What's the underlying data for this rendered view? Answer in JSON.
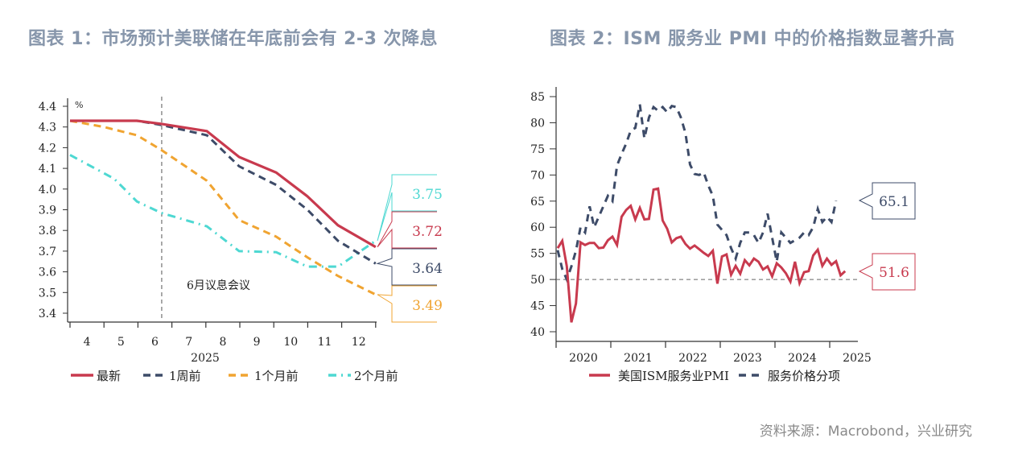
{
  "titles": {
    "left": "图表 1：市场预计美联储在年底前会有 2-3 次降息",
    "right": "图表 2：ISM 服务业 PMI 中的价格指数显著升高"
  },
  "source": "资料来源：Macrobond，兴业研究",
  "chart_data": [
    {
      "type": "line",
      "unit_label": "%",
      "xlabel": "2025",
      "x_tick_labels": [
        "4",
        "5",
        "6",
        "7",
        "8",
        "9",
        "10",
        "11",
        "12"
      ],
      "x_unit": "month of 2025",
      "ylim": [
        3.4,
        4.4
      ],
      "y_ticks": [
        3.4,
        3.5,
        3.6,
        3.7,
        3.8,
        3.9,
        4.0,
        4.1,
        4.2,
        4.3,
        4.4
      ],
      "grid": false,
      "legend_position": "bottom",
      "annotation": {
        "text": "6月议息会议",
        "x": 6.2
      },
      "series": [
        {
          "name": "最新",
          "color": "#c83a4e",
          "style": "solid",
          "x": [
            3.5,
            5.47,
            6.18,
            7.53,
            8.48,
            9.57,
            10.49,
            11.39,
            12.5
          ],
          "y": [
            4.33,
            4.33,
            4.315,
            4.28,
            4.155,
            4.08,
            3.965,
            3.825,
            3.72
          ],
          "end_label": "3.72"
        },
        {
          "name": "1周前",
          "color": "#3d4b68",
          "style": "dash",
          "x": [
            3.5,
            5.47,
            6.18,
            7.53,
            8.48,
            9.57,
            10.49,
            11.39,
            12.5
          ],
          "y": [
            4.33,
            4.33,
            4.31,
            4.26,
            4.11,
            4.02,
            3.9,
            3.75,
            3.64
          ],
          "end_label": "3.64"
        },
        {
          "name": "1个月前",
          "color": "#f0a431",
          "style": "dash",
          "x": [
            3.5,
            4.5,
            5.47,
            6.18,
            7.53,
            8.48,
            9.57,
            10.49,
            11.39,
            12.5
          ],
          "y": [
            4.33,
            4.3,
            4.26,
            4.19,
            4.04,
            3.85,
            3.77,
            3.67,
            3.58,
            3.49
          ],
          "end_label": "3.49"
        },
        {
          "name": "2个月前",
          "color": "#4ed8d2",
          "style": "dashdot",
          "x": [
            3.5,
            4.8,
            5.47,
            6.18,
            7.53,
            8.48,
            9.57,
            10.49,
            11.39,
            12.5
          ],
          "y": [
            4.165,
            4.05,
            3.94,
            3.885,
            3.82,
            3.7,
            3.695,
            3.625,
            3.625,
            3.75
          ],
          "end_label": "3.75"
        }
      ]
    },
    {
      "type": "line",
      "x_tick_labels": [
        "2020",
        "2021",
        "2022",
        "2023",
        "2024",
        "2025"
      ],
      "x_start": "2020-01",
      "x_frequency": "monthly",
      "ylim": [
        40,
        85
      ],
      "y_ticks": [
        40,
        45,
        50,
        55,
        60,
        65,
        70,
        75,
        80,
        85
      ],
      "reference_line": 50,
      "grid": false,
      "legend_position": "bottom",
      "series": [
        {
          "name": "美国ISM服务业PMI",
          "color": "#c83a4e",
          "style": "solid",
          "end_label": "51.6",
          "values": [
            56.0,
            57.4,
            52.5,
            41.8,
            45.4,
            57.1,
            56.6,
            57.0,
            57.0,
            56.0,
            56.1,
            57.5,
            58.2,
            56.6,
            62.0,
            63.3,
            64.1,
            61.5,
            63.7,
            61.5,
            61.6,
            67.2,
            67.4,
            61.3,
            59.7,
            57.1,
            57.9,
            58.2,
            56.8,
            55.9,
            56.5,
            55.8,
            55.1,
            54.5,
            55.5,
            49.2,
            54.4,
            54.8,
            50.9,
            52.6,
            51.1,
            53.7,
            52.7,
            54.0,
            53.4,
            51.9,
            52.5,
            50.6,
            53.1,
            52.3,
            51.2,
            49.6,
            53.4,
            49.3,
            51.4,
            51.6,
            54.6,
            55.7,
            52.6,
            54.0,
            52.8,
            53.5,
            50.8,
            51.6
          ]
        },
        {
          "name": "服务价格分项",
          "color": "#3d4b68",
          "style": "dash",
          "end_label": "65.1",
          "values": [
            55.6,
            52.0,
            50.0,
            52.5,
            55.5,
            60.0,
            59.0,
            64.0,
            60.0,
            62.0,
            64.0,
            66.0,
            65.0,
            71.8,
            74.0,
            76.0,
            78.5,
            79.0,
            83.5,
            77.0,
            81.0,
            83.0,
            82.3,
            83.0,
            82.0,
            83.2,
            83.0,
            81.0,
            78.0,
            72.0,
            70.2,
            70.0,
            70.5,
            68.0,
            66.0,
            60.5,
            59.5,
            58.5,
            56.0,
            54.0,
            57.0,
            59.0,
            59.0,
            58.5,
            57.0,
            59.0,
            62.6,
            58.0,
            53.4,
            59.0,
            58.0,
            57.0,
            57.5,
            58.0,
            59.0,
            58.5,
            60.0,
            63.5,
            61.0,
            62.0,
            61.0,
            65.1
          ]
        }
      ]
    }
  ]
}
